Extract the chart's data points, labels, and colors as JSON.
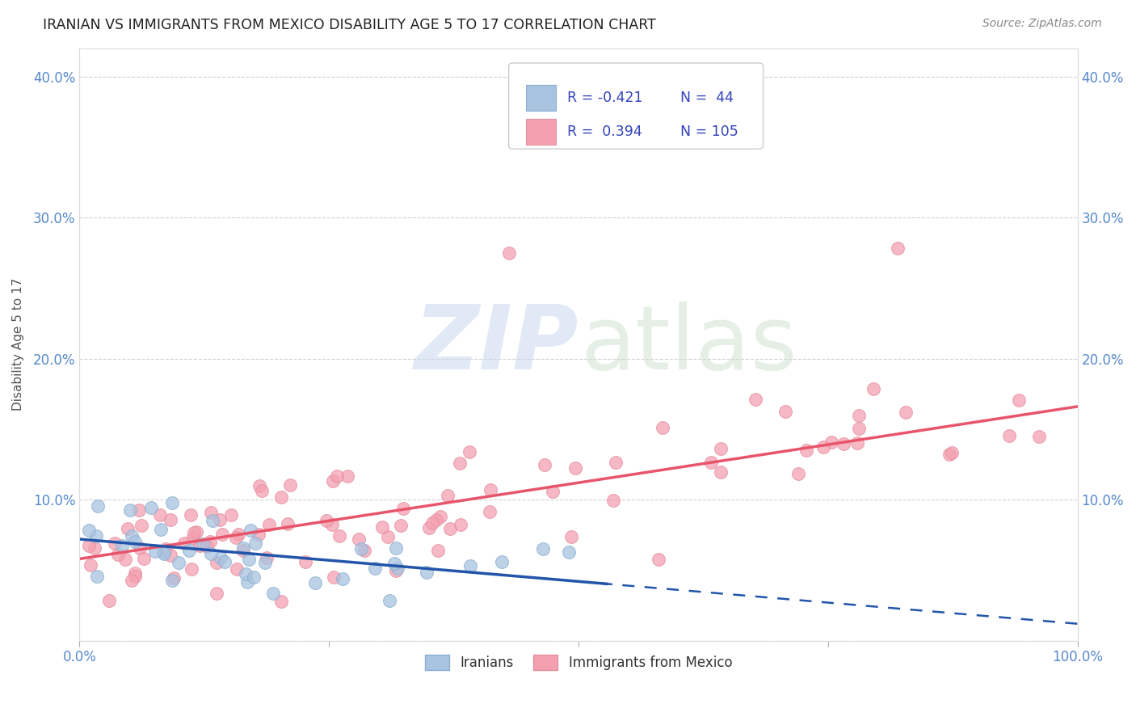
{
  "title": "IRANIAN VS IMMIGRANTS FROM MEXICO DISABILITY AGE 5 TO 17 CORRELATION CHART",
  "source": "Source: ZipAtlas.com",
  "ylabel": "Disability Age 5 to 17",
  "xlim": [
    0.0,
    1.0
  ],
  "ylim": [
    0.0,
    0.42
  ],
  "yticks": [
    0.0,
    0.1,
    0.2,
    0.3,
    0.4
  ],
  "xticks": [
    0.0,
    0.25,
    0.5,
    0.75,
    1.0
  ],
  "xtick_labels": [
    "0.0%",
    "",
    "",
    "",
    "100.0%"
  ],
  "ytick_labels_left": [
    "",
    "10.0%",
    "20.0%",
    "30.0%",
    "40.0%"
  ],
  "ytick_labels_right": [
    "",
    "10.0%",
    "20.0%",
    "30.0%",
    "40.0%"
  ],
  "legend_R_iranian": "-0.421",
  "legend_N_iranian": "44",
  "legend_R_mexico": "0.394",
  "legend_N_mexico": "105",
  "iranian_color": "#a8c4e0",
  "iran_edge_color": "#8aaed0",
  "mexico_color": "#f4a0b0",
  "mex_edge_color": "#e490a0",
  "iranian_line_color": "#2255aa",
  "mexico_line_color": "#e8556a",
  "background_color": "#ffffff",
  "grid_color": "#cccccc",
  "axis_color": "#5588cc",
  "iran_line_intercept": 0.072,
  "iran_line_slope": -0.06,
  "iran_line_solid_end": 0.53,
  "iran_line_dashed_end": 1.0,
  "mex_line_intercept": 0.058,
  "mex_line_slope": 0.108,
  "watermark_zip_color": "#c8d8ee",
  "watermark_atlas_color": "#c8ddc8"
}
